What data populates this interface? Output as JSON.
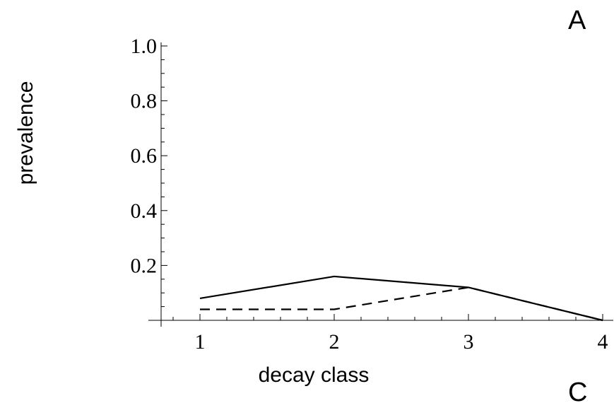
{
  "panel_labels": {
    "top": "A",
    "bottom": "C"
  },
  "chart_data": {
    "type": "line",
    "xlabel": "decay class",
    "ylabel": "prevalence",
    "x": [
      1,
      2,
      3,
      4
    ],
    "xlim": [
      0.7,
      4.1
    ],
    "ylim": [
      0,
      1.0
    ],
    "xticks": [
      "1",
      "2",
      "3",
      "4"
    ],
    "yticks": [
      "0.2",
      "0.4",
      "0.6",
      "0.8",
      "1.0"
    ],
    "yticks_values": [
      0.2,
      0.4,
      0.6,
      0.8,
      1.0
    ],
    "series": [
      {
        "style": "solid",
        "values": [
          0.08,
          0.16,
          0.12,
          0.0
        ]
      },
      {
        "style": "dashed",
        "values": [
          0.04,
          0.04,
          0.12,
          0.0
        ]
      }
    ],
    "grid": false
  }
}
